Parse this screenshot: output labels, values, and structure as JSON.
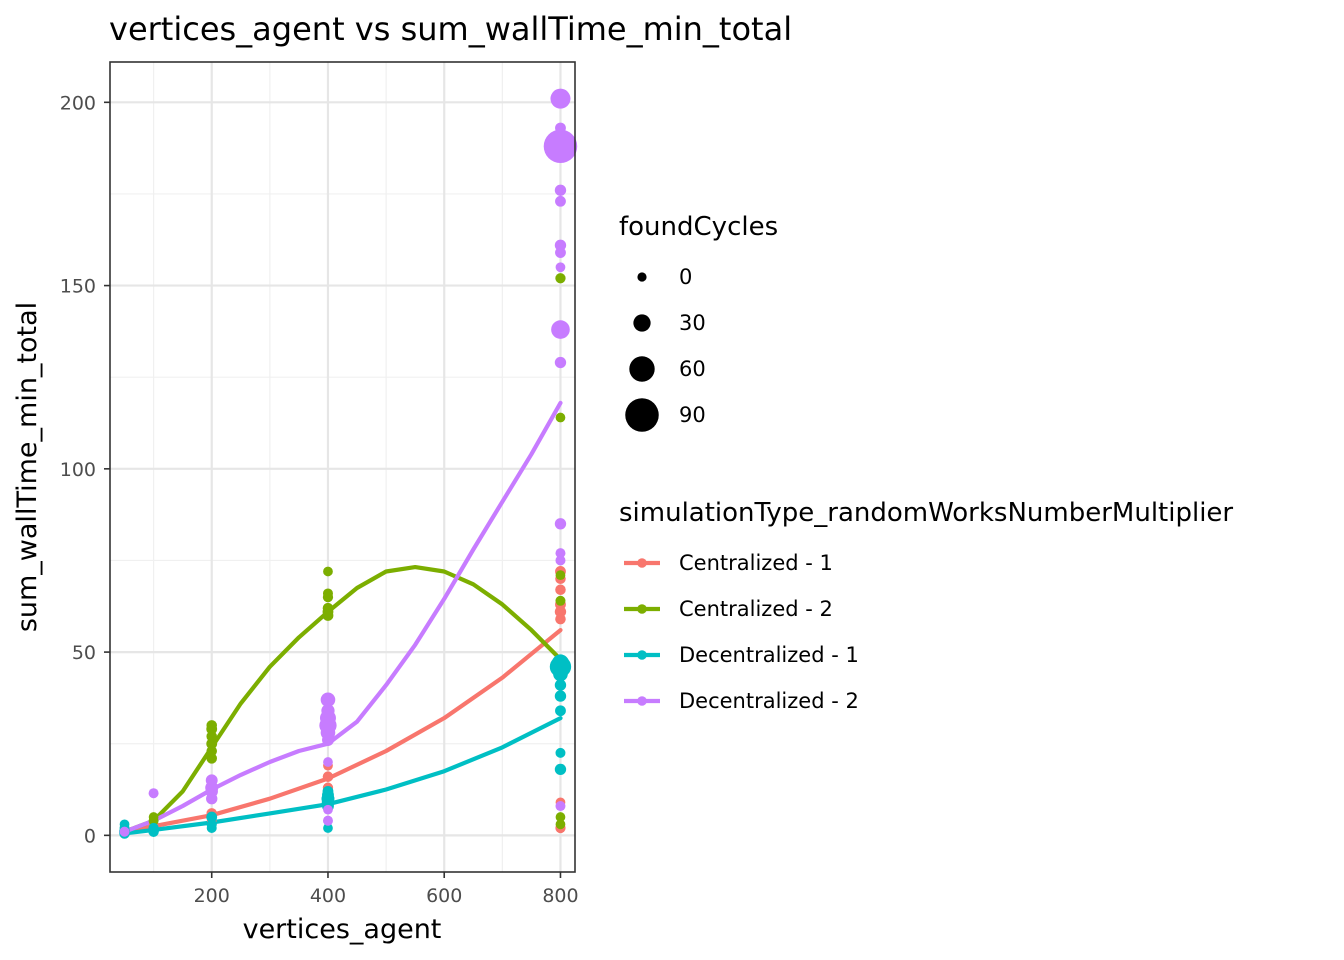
{
  "chart_data": {
    "type": "scatter",
    "title": "vertices_agent  vs  sum_wallTime_min_total",
    "xlabel": "vertices_agent",
    "ylabel": "sum_wallTime_min_total",
    "xlim": [
      25,
      825
    ],
    "ylim": [
      -10,
      211
    ],
    "xticks": [
      200,
      400,
      600,
      800
    ],
    "yticks": [
      0,
      50,
      100,
      150,
      200
    ],
    "grid": true,
    "legend_position": "right",
    "size_legend": {
      "title": "foundCycles",
      "entries": [
        {
          "label": "0",
          "value": 0
        },
        {
          "label": "30",
          "value": 30
        },
        {
          "label": "60",
          "value": 60
        },
        {
          "label": "90",
          "value": 90
        }
      ]
    },
    "color_legend": {
      "title": "simulationType_randomWorksNumberMultiplier"
    },
    "series": [
      {
        "name": "Centralized - 1",
        "color": "#F8766D",
        "points": [
          {
            "x": 50,
            "y": 0.5,
            "size": 0
          },
          {
            "x": 50,
            "y": 1.2,
            "size": 2
          },
          {
            "x": 100,
            "y": 1.5,
            "size": 0
          },
          {
            "x": 100,
            "y": 3,
            "size": 2
          },
          {
            "x": 200,
            "y": 4,
            "size": 2
          },
          {
            "x": 200,
            "y": 6,
            "size": 5
          },
          {
            "x": 400,
            "y": 13,
            "size": 4
          },
          {
            "x": 400,
            "y": 16,
            "size": 5
          },
          {
            "x": 400,
            "y": 19,
            "size": 2
          },
          {
            "x": 800,
            "y": 72,
            "size": 6
          },
          {
            "x": 800,
            "y": 70,
            "size": 5
          },
          {
            "x": 800,
            "y": 67,
            "size": 5
          },
          {
            "x": 800,
            "y": 63,
            "size": 6
          },
          {
            "x": 800,
            "y": 61,
            "size": 8
          },
          {
            "x": 800,
            "y": 59,
            "size": 5
          },
          {
            "x": 800,
            "y": 9,
            "size": 2
          },
          {
            "x": 800,
            "y": 2,
            "size": 4
          }
        ],
        "smooth": [
          [
            50,
            1
          ],
          [
            100,
            2.5
          ],
          [
            200,
            5.5
          ],
          [
            300,
            10
          ],
          [
            400,
            15.5
          ],
          [
            500,
            23
          ],
          [
            600,
            32
          ],
          [
            700,
            43
          ],
          [
            800,
            56
          ]
        ]
      },
      {
        "name": "Centralized - 2",
        "color": "#7CAE00",
        "points": [
          {
            "x": 50,
            "y": 1,
            "size": 2
          },
          {
            "x": 100,
            "y": 4,
            "size": 3
          },
          {
            "x": 100,
            "y": 5,
            "size": 2
          },
          {
            "x": 200,
            "y": 21,
            "size": 5
          },
          {
            "x": 200,
            "y": 23,
            "size": 5
          },
          {
            "x": 200,
            "y": 25,
            "size": 6
          },
          {
            "x": 200,
            "y": 27,
            "size": 5
          },
          {
            "x": 200,
            "y": 29,
            "size": 6
          },
          {
            "x": 200,
            "y": 30,
            "size": 5
          },
          {
            "x": 400,
            "y": 60,
            "size": 6
          },
          {
            "x": 400,
            "y": 61,
            "size": 6
          },
          {
            "x": 400,
            "y": 62,
            "size": 5
          },
          {
            "x": 400,
            "y": 65,
            "size": 4
          },
          {
            "x": 400,
            "y": 66,
            "size": 3
          },
          {
            "x": 400,
            "y": 72,
            "size": 2
          },
          {
            "x": 800,
            "y": 152,
            "size": 4
          },
          {
            "x": 800,
            "y": 114,
            "size": 2
          },
          {
            "x": 800,
            "y": 71,
            "size": 2
          },
          {
            "x": 800,
            "y": 64,
            "size": 3
          },
          {
            "x": 800,
            "y": 5,
            "size": 2
          },
          {
            "x": 800,
            "y": 3,
            "size": 2
          }
        ],
        "smooth": [
          [
            50,
            1
          ],
          [
            100,
            4
          ],
          [
            150,
            12
          ],
          [
            200,
            24
          ],
          [
            250,
            36
          ],
          [
            300,
            46
          ],
          [
            350,
            54
          ],
          [
            400,
            61
          ],
          [
            450,
            67.5
          ],
          [
            500,
            72
          ],
          [
            550,
            73.2
          ],
          [
            600,
            72
          ],
          [
            650,
            68.5
          ],
          [
            700,
            63
          ],
          [
            750,
            56
          ],
          [
            800,
            48
          ]
        ]
      },
      {
        "name": "Decentralized - 1",
        "color": "#00BFC4",
        "points": [
          {
            "x": 50,
            "y": 0.5,
            "size": 5
          },
          {
            "x": 50,
            "y": 1,
            "size": 6
          },
          {
            "x": 50,
            "y": 2,
            "size": 3
          },
          {
            "x": 50,
            "y": 3,
            "size": 2
          },
          {
            "x": 100,
            "y": 1,
            "size": 5
          },
          {
            "x": 100,
            "y": 2,
            "size": 4
          },
          {
            "x": 200,
            "y": 2,
            "size": 3
          },
          {
            "x": 200,
            "y": 3,
            "size": 4
          },
          {
            "x": 200,
            "y": 5,
            "size": 6
          },
          {
            "x": 400,
            "y": 2,
            "size": 2
          },
          {
            "x": 400,
            "y": 8,
            "size": 10
          },
          {
            "x": 400,
            "y": 9,
            "size": 12
          },
          {
            "x": 400,
            "y": 10,
            "size": 14
          },
          {
            "x": 400,
            "y": 11,
            "size": 10
          },
          {
            "x": 400,
            "y": 12,
            "size": 6
          },
          {
            "x": 800,
            "y": 46,
            "size": 45
          },
          {
            "x": 800,
            "y": 47,
            "size": 30
          },
          {
            "x": 800,
            "y": 44,
            "size": 20
          },
          {
            "x": 800,
            "y": 41,
            "size": 8
          },
          {
            "x": 800,
            "y": 38,
            "size": 8
          },
          {
            "x": 800,
            "y": 34,
            "size": 6
          },
          {
            "x": 800,
            "y": 22.5,
            "size": 3
          },
          {
            "x": 800,
            "y": 18,
            "size": 8
          }
        ],
        "smooth": [
          [
            50,
            0.5
          ],
          [
            100,
            1.5
          ],
          [
            200,
            3.5
          ],
          [
            300,
            6
          ],
          [
            400,
            8.5
          ],
          [
            500,
            12.5
          ],
          [
            600,
            17.5
          ],
          [
            700,
            24
          ],
          [
            800,
            32
          ]
        ]
      },
      {
        "name": "Decentralized - 2",
        "color": "#C77CFF",
        "points": [
          {
            "x": 50,
            "y": 1,
            "size": 3
          },
          {
            "x": 100,
            "y": 11.5,
            "size": 3
          },
          {
            "x": 200,
            "y": 10,
            "size": 8
          },
          {
            "x": 200,
            "y": 12,
            "size": 12
          },
          {
            "x": 200,
            "y": 13,
            "size": 14
          },
          {
            "x": 200,
            "y": 15,
            "size": 10
          },
          {
            "x": 400,
            "y": 4,
            "size": 3
          },
          {
            "x": 400,
            "y": 7,
            "size": 2
          },
          {
            "x": 400,
            "y": 20,
            "size": 2
          },
          {
            "x": 400,
            "y": 26,
            "size": 10
          },
          {
            "x": 400,
            "y": 28,
            "size": 20
          },
          {
            "x": 400,
            "y": 30,
            "size": 30
          },
          {
            "x": 400,
            "y": 32,
            "size": 25
          },
          {
            "x": 400,
            "y": 34,
            "size": 15
          },
          {
            "x": 400,
            "y": 37,
            "size": 20
          },
          {
            "x": 800,
            "y": 201,
            "size": 40
          },
          {
            "x": 800,
            "y": 193,
            "size": 6
          },
          {
            "x": 800,
            "y": 188,
            "size": 90
          },
          {
            "x": 800,
            "y": 176,
            "size": 8
          },
          {
            "x": 800,
            "y": 173,
            "size": 6
          },
          {
            "x": 800,
            "y": 161,
            "size": 8
          },
          {
            "x": 800,
            "y": 159,
            "size": 6
          },
          {
            "x": 800,
            "y": 155,
            "size": 2
          },
          {
            "x": 800,
            "y": 138,
            "size": 35
          },
          {
            "x": 800,
            "y": 129,
            "size": 8
          },
          {
            "x": 800,
            "y": 85,
            "size": 8
          },
          {
            "x": 800,
            "y": 77,
            "size": 3
          },
          {
            "x": 800,
            "y": 75,
            "size": 3
          },
          {
            "x": 800,
            "y": 8,
            "size": 3
          }
        ],
        "smooth": [
          [
            50,
            1
          ],
          [
            100,
            4
          ],
          [
            150,
            8
          ],
          [
            200,
            12.5
          ],
          [
            250,
            16.5
          ],
          [
            300,
            20
          ],
          [
            350,
            23
          ],
          [
            400,
            25
          ],
          [
            450,
            31
          ],
          [
            500,
            41
          ],
          [
            550,
            52
          ],
          [
            600,
            64.5
          ],
          [
            650,
            78
          ],
          [
            700,
            91
          ],
          [
            750,
            104
          ],
          [
            800,
            118
          ]
        ]
      }
    ]
  }
}
